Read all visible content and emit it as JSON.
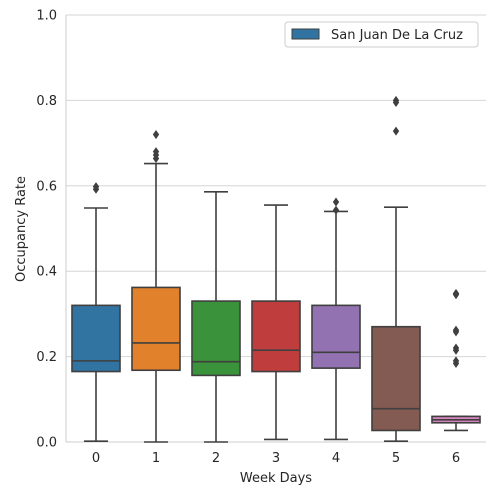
{
  "chart_data": {
    "type": "box",
    "xlabel": "Week Days",
    "ylabel": "Occupancy Rate",
    "ylim": [
      0,
      1.0
    ],
    "y_ticks": [
      "0.0",
      "0.2",
      "0.4",
      "0.6",
      "0.8",
      "1.0"
    ],
    "y_tick_values": [
      0,
      0.2,
      0.4,
      0.6,
      0.8,
      1.0
    ],
    "grid": "horizontal",
    "legend": {
      "position": "top-right",
      "entries": [
        "San Juan De La Cruz"
      ]
    },
    "categories": [
      "0",
      "1",
      "2",
      "3",
      "4",
      "5",
      "6"
    ],
    "colors": [
      "#3274a1",
      "#e1812c",
      "#3a923a",
      "#c03d3e",
      "#9372b2",
      "#845b53",
      "#d684bd"
    ],
    "legend_color": "#3274a1",
    "boxes": [
      {
        "label": "0",
        "whislo": 0.002,
        "q1": 0.165,
        "med": 0.19,
        "q3": 0.32,
        "whishi": 0.548,
        "fliers": [
          0.592,
          0.598
        ]
      },
      {
        "label": "1",
        "whislo": 0.0,
        "q1": 0.168,
        "med": 0.232,
        "q3": 0.362,
        "whishi": 0.652,
        "fliers": [
          0.664,
          0.672,
          0.68,
          0.72
        ]
      },
      {
        "label": "2",
        "whislo": 0.0,
        "q1": 0.156,
        "med": 0.188,
        "q3": 0.33,
        "whishi": 0.586,
        "fliers": []
      },
      {
        "label": "3",
        "whislo": 0.006,
        "q1": 0.165,
        "med": 0.215,
        "q3": 0.33,
        "whishi": 0.555,
        "fliers": []
      },
      {
        "label": "4",
        "whislo": 0.006,
        "q1": 0.173,
        "med": 0.21,
        "q3": 0.32,
        "whishi": 0.54,
        "fliers": [
          0.543,
          0.562
        ]
      },
      {
        "label": "5",
        "whislo": 0.002,
        "q1": 0.027,
        "med": 0.078,
        "q3": 0.27,
        "whishi": 0.55,
        "fliers": [
          0.728,
          0.795,
          0.8
        ]
      },
      {
        "label": "6",
        "whislo": 0.027,
        "q1": 0.045,
        "med": 0.052,
        "q3": 0.06,
        "whishi": 0.06,
        "fliers": [
          0.184,
          0.19,
          0.215,
          0.22,
          0.258,
          0.262,
          0.345,
          0.348
        ]
      }
    ]
  }
}
